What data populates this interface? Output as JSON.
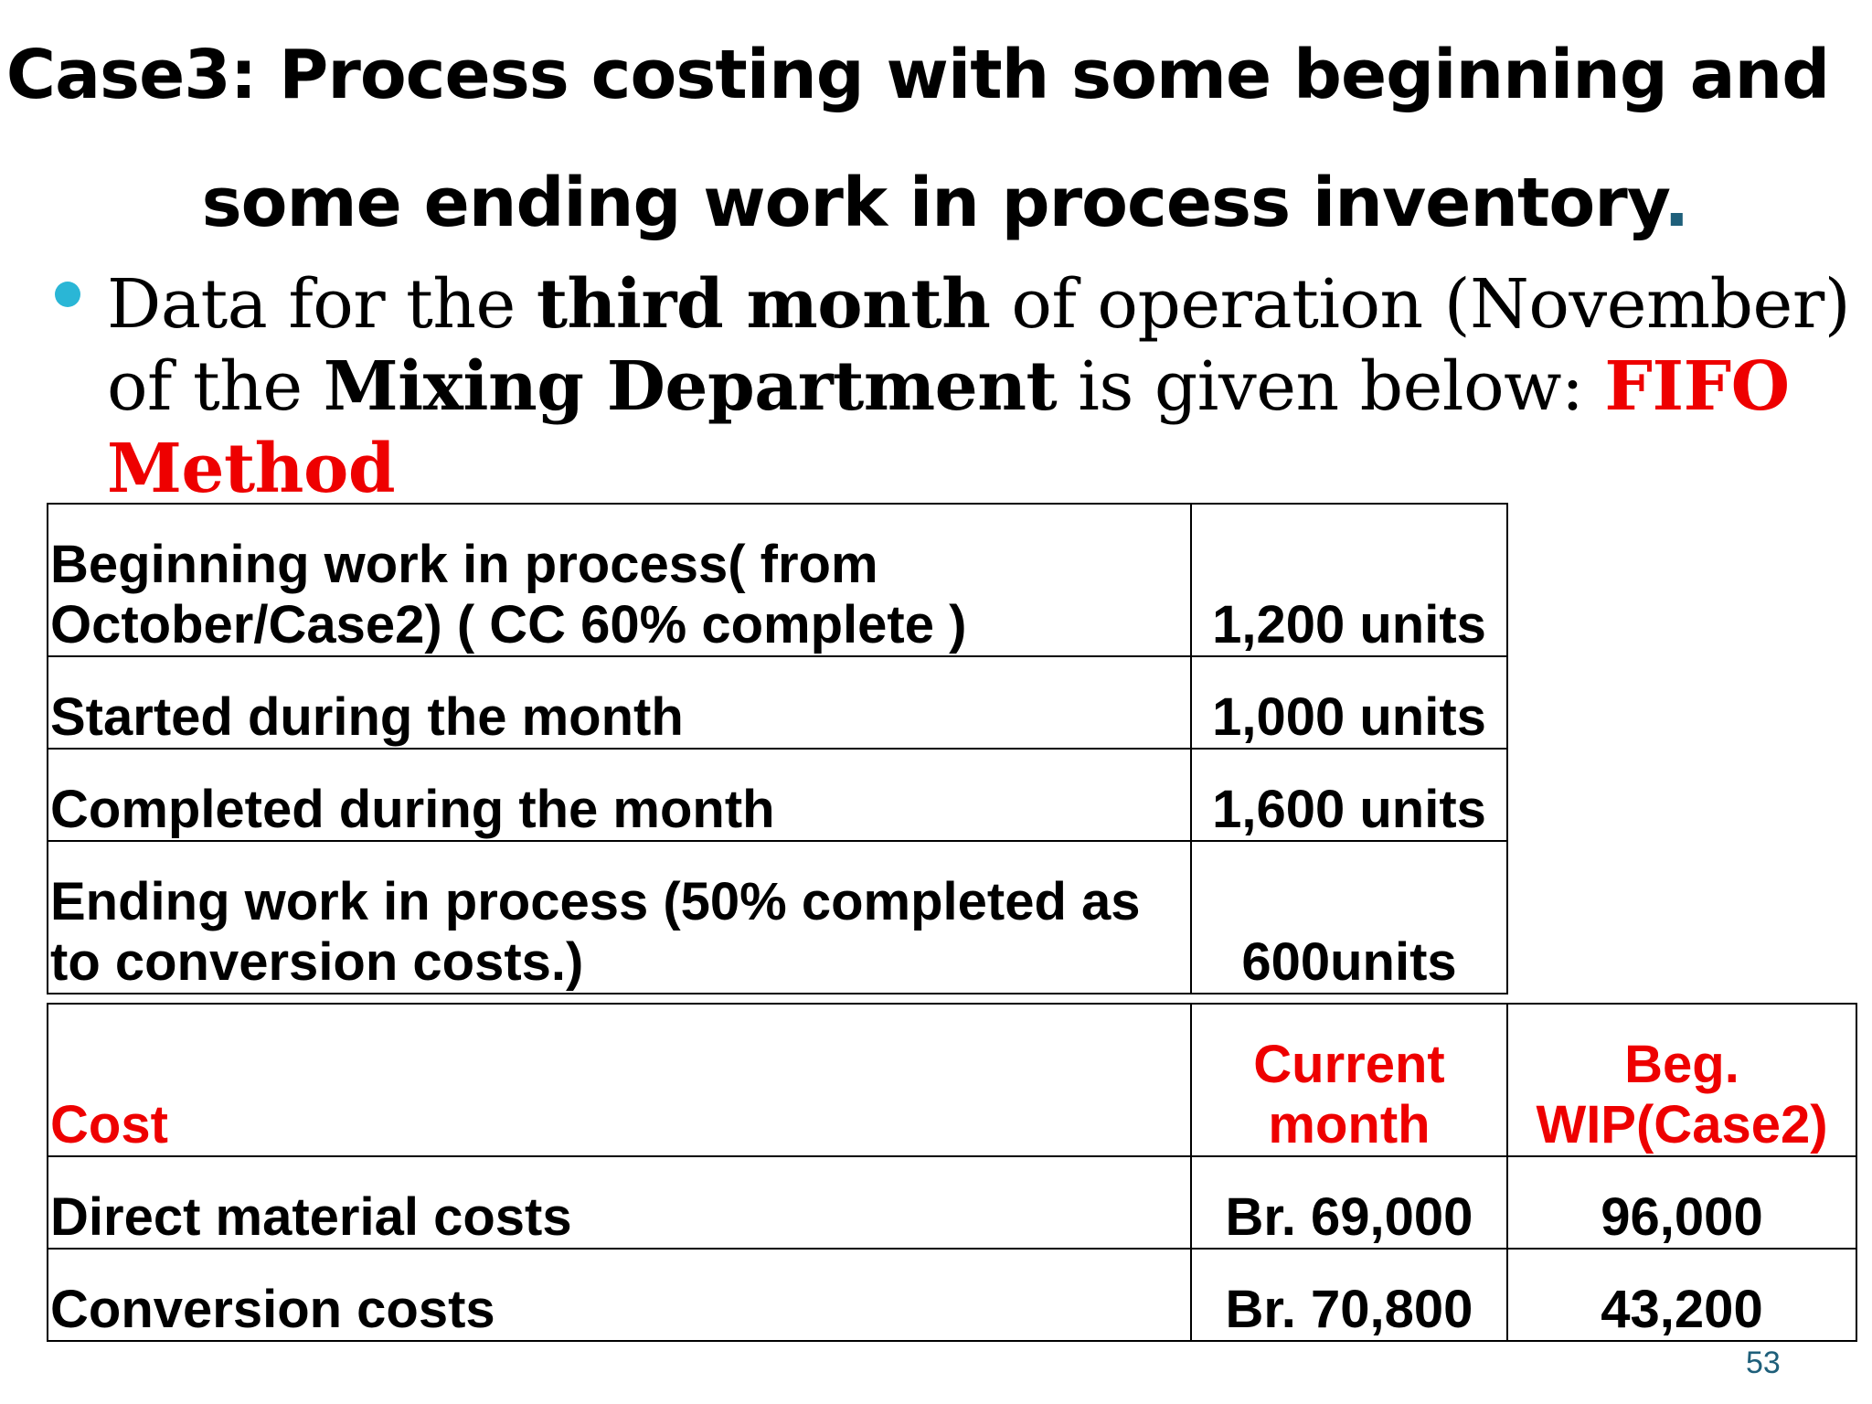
{
  "title": {
    "line1": "Case3: Process costing with some beginning and",
    "line2": "some ending work in process inventory",
    "line2_end": "."
  },
  "intro": {
    "part1": "Data for the ",
    "bold1": "third month",
    "part2": " of operation (November) of the ",
    "bold2": "Mixing Department",
    "part3": " is given below: ",
    "method": "FIFO Method"
  },
  "units_table": [
    {
      "label": "Beginning work in process( from October/Case2) ( CC 60% complete )",
      "value": "1,200 units"
    },
    {
      "label": "Started during the month",
      "value": "1,000 units"
    },
    {
      "label": "Completed during the month",
      "value": "1,600 units"
    },
    {
      "label": "Ending work in process (50% completed as to conversion costs.)",
      "value": "600units"
    }
  ],
  "cost_table": {
    "header": {
      "label": "Cost",
      "current": "Current month",
      "beginning": "Beg. WIP(Case2)"
    },
    "rows": [
      {
        "label": "Direct material costs",
        "current": "Br. 69,000",
        "beginning": "96,000"
      },
      {
        "label": "Conversion costs",
        "current": "Br. 70,800",
        "beginning": "43,200"
      }
    ]
  },
  "page_number": "53",
  "colors": {
    "accent": "#ee0000",
    "bullet": "#2ab6d6",
    "page_number": "#1e5f7a"
  }
}
